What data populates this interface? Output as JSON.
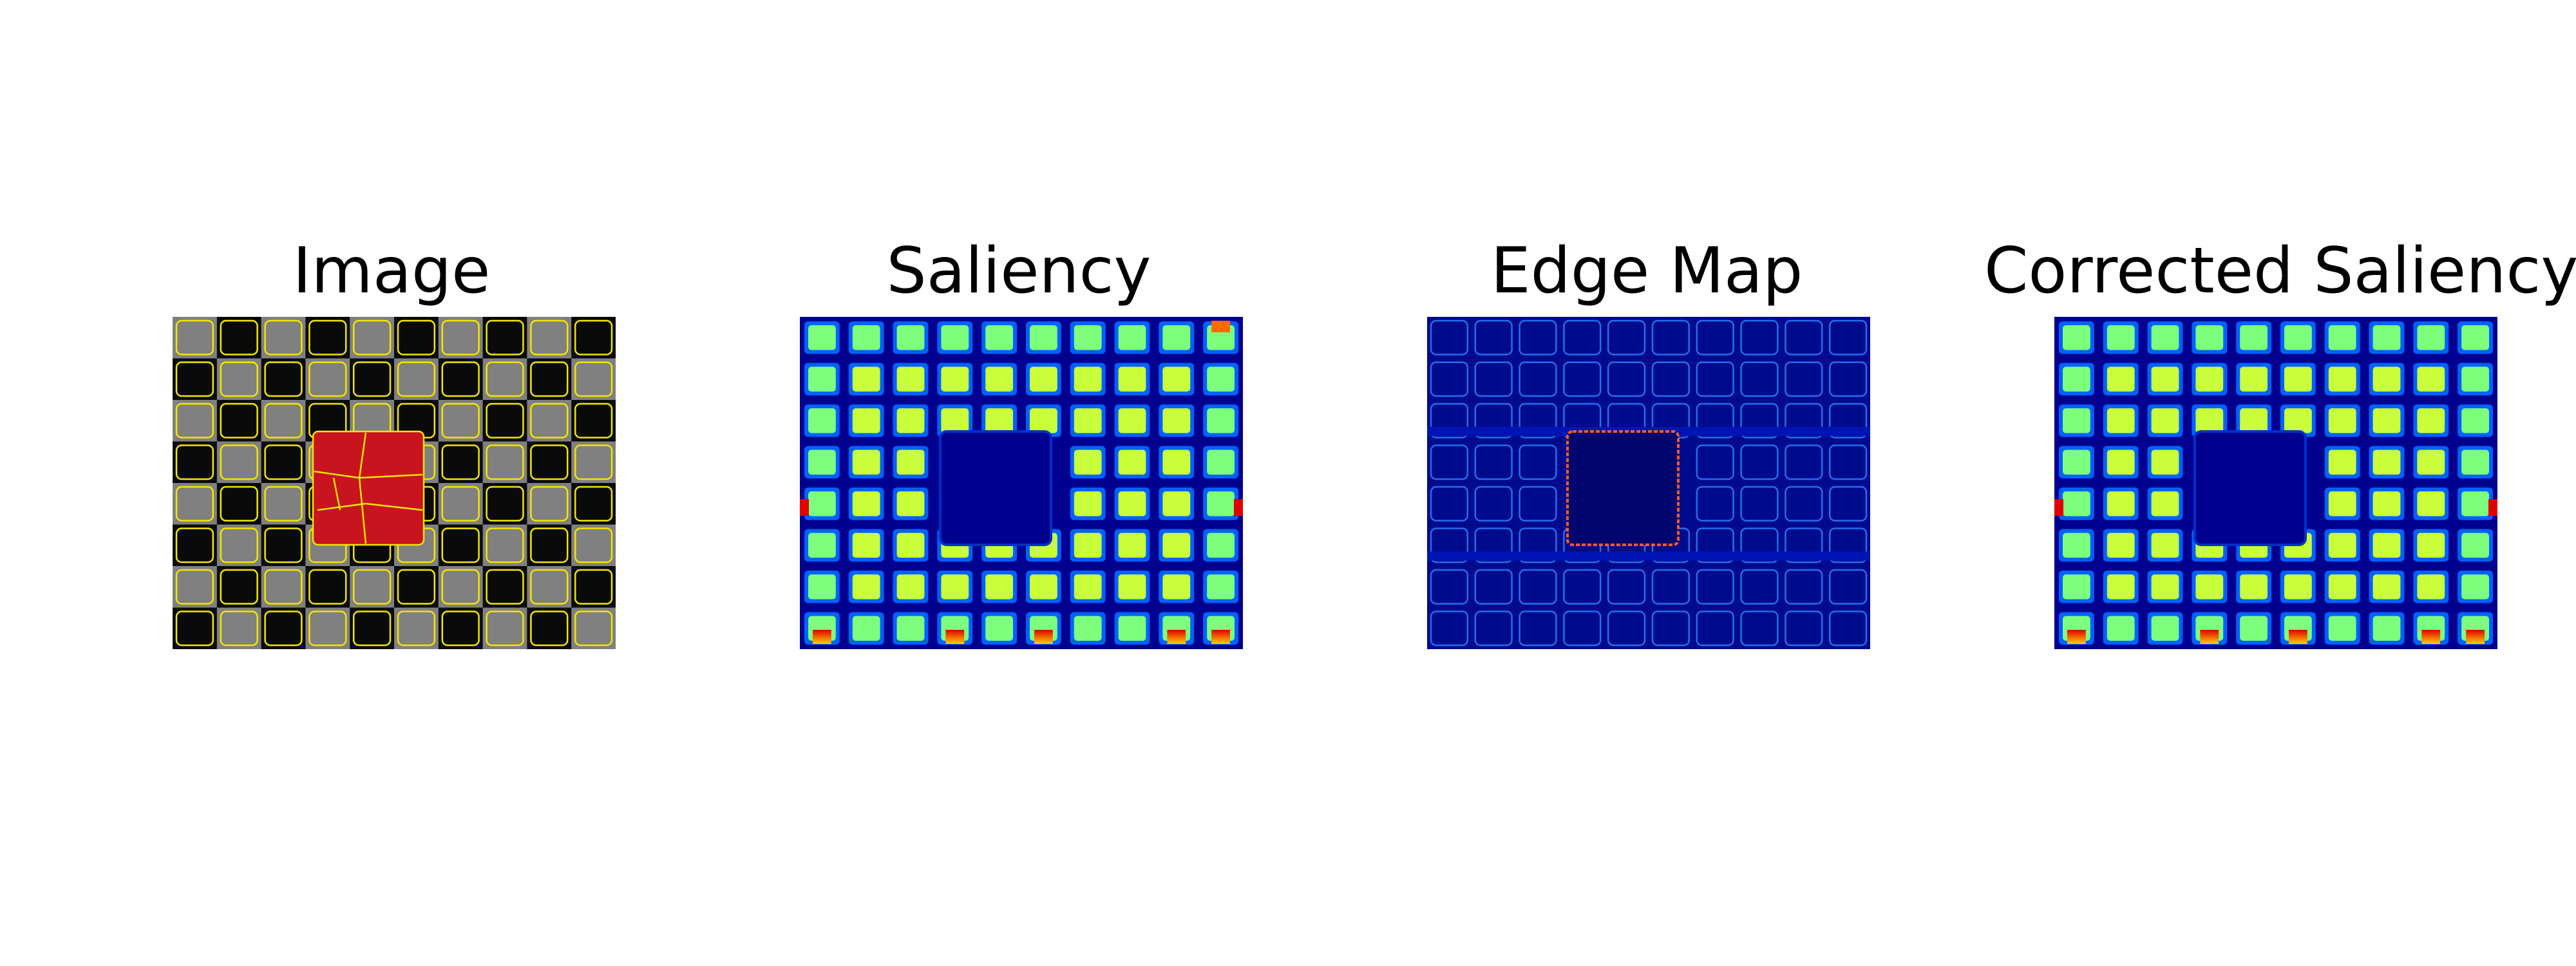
{
  "figure": {
    "panels": [
      {
        "title": "Image",
        "content": "checkerboard-superpixels"
      },
      {
        "title": "Saliency",
        "content": "saliency-heatmap"
      },
      {
        "title": "Edge Map",
        "content": "edge-map"
      },
      {
        "title": "Corrected Saliency",
        "content": "corrected-saliency-heatmap"
      }
    ]
  },
  "colors": {
    "checker_dark": "#0a0a0a",
    "checker_light": "#808080",
    "superpixel_boundary": "#f2e600",
    "highlight_region": "#c8141e",
    "heat_background": "#00008f",
    "heat_mid": "#0062ff",
    "heat_cell": "#c8ff3a",
    "heat_hot": "#e00000",
    "edge_background": "#000a8c",
    "edge_line": "#2a7fff",
    "edge_highlight": "#ff5a28"
  }
}
